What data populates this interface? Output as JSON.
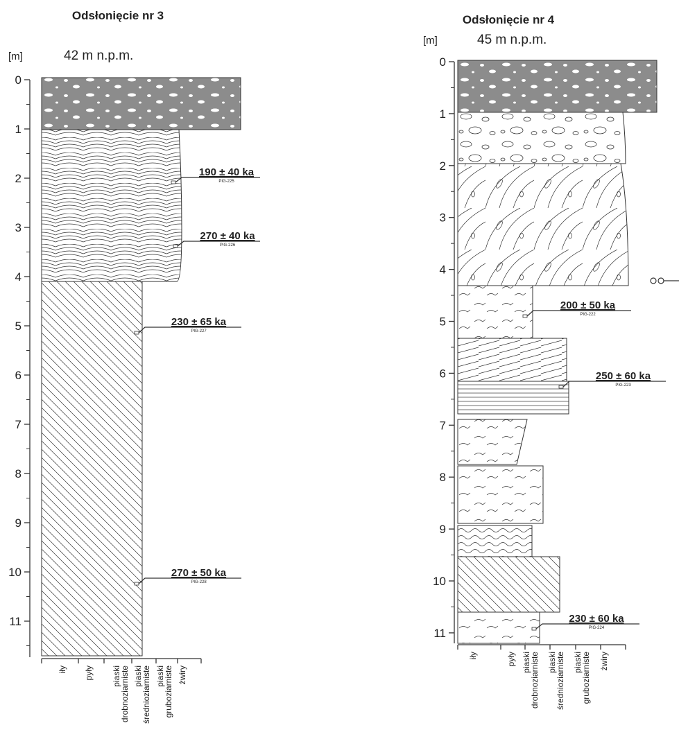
{
  "logs": [
    {
      "title": "Odsłonięcie nr 3",
      "unit": "[m]",
      "elevation": "42 m n.p.m.",
      "depth_ticks": [
        0,
        1,
        2,
        3,
        4,
        5,
        6,
        7,
        8,
        9,
        10,
        11
      ],
      "grain_sizes": [
        [
          "iły"
        ],
        [
          "pyły"
        ],
        [
          "piaski",
          "drobnoziarniste"
        ],
        [
          "piaski",
          "średnioziarniste"
        ],
        [
          "piaski",
          "gruboziarniste"
        ],
        [
          "żwiry"
        ]
      ],
      "dates": [
        {
          "age": "190 ± 40 ka",
          "sample": "PIG-225"
        },
        {
          "age": "270 ± 40 ka",
          "sample": "PIG-226"
        },
        {
          "age": "230 ± 65 ka",
          "sample": "PIG-227"
        },
        {
          "age": "270 ± 50 ka",
          "sample": "PIG-228"
        }
      ]
    },
    {
      "title": "Odsłonięcie nr 4",
      "unit": "[m]",
      "elevation": "45 m n.p.m.",
      "depth_ticks": [
        0,
        1,
        2,
        3,
        4,
        5,
        6,
        7,
        8,
        9,
        10,
        11
      ],
      "grain_sizes": [
        [
          "iły"
        ],
        [
          "pyły"
        ],
        [
          "piaski",
          "drobnoziarniste"
        ],
        [
          "piaski",
          "średnioziarniste"
        ],
        [
          "piaski",
          "gruboziarniste"
        ],
        [
          "żwiry"
        ]
      ],
      "dates": [
        {
          "age": "200 ± 50 ka",
          "sample": "PIG-222"
        },
        {
          "age": "250 ± 60 ka",
          "sample": "PIG-223"
        },
        {
          "age": "230 ± 60 ka",
          "sample": "PIG-224"
        }
      ]
    }
  ]
}
